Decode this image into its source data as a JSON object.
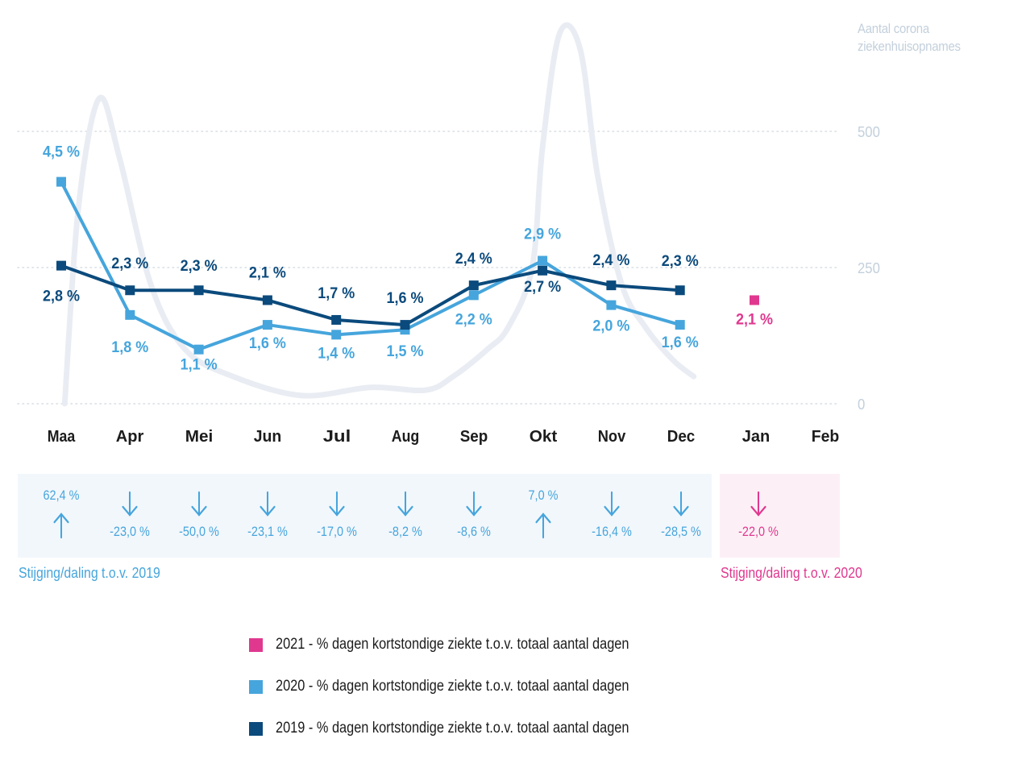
{
  "chart_data": {
    "type": "line",
    "title": "",
    "categories": [
      "Maa",
      "Apr",
      "Mei",
      "Jun",
      "Jul",
      "Aug",
      "Sep",
      "Okt",
      "Nov",
      "Dec",
      "Jan",
      "Feb"
    ],
    "series": [
      {
        "name": "2021 - % dagen kortstondige ziekte t.o.v. totaal aantal dagen",
        "color": "#e0388f",
        "values": [
          null,
          null,
          null,
          null,
          null,
          null,
          null,
          null,
          null,
          null,
          2.1,
          null
        ],
        "labels": [
          null,
          null,
          null,
          null,
          null,
          null,
          null,
          null,
          null,
          null,
          "2,1 %",
          null
        ]
      },
      {
        "name": "2020 - % dagen kortstondige ziekte t.o.v. totaal aantal dagen",
        "color": "#46a5dc",
        "values": [
          4.5,
          1.8,
          1.1,
          1.6,
          1.4,
          1.5,
          2.2,
          2.9,
          2.0,
          1.6,
          null,
          null
        ],
        "labels": [
          "4,5 %",
          "1,8 %",
          "1,1 %",
          "1,6 %",
          "1,4 %",
          "1,5 %",
          "2,2 %",
          "2,9 %",
          "2,0 %",
          "1,6 %",
          null,
          null
        ]
      },
      {
        "name": "2019 - % dagen kortstondige ziekte t.o.v. totaal aantal dagen",
        "color": "#0b4a7c",
        "values": [
          2.8,
          2.3,
          2.3,
          2.1,
          1.7,
          1.6,
          2.4,
          2.7,
          2.4,
          2.3,
          null,
          null
        ],
        "labels": [
          "2,8 %",
          "2,3 %",
          "2,3 %",
          "2,1 %",
          "1,7 %",
          "1,6 %",
          "2,4 %",
          "2,7 %",
          "2,4 %",
          "2,3 %",
          null,
          null
        ]
      }
    ],
    "background_series": {
      "name": "Aantal corona ziekenhuisopnames",
      "color": "#e9edf3",
      "x": [
        0.05,
        0.25,
        0.55,
        0.85,
        1.3,
        1.8,
        2.5,
        3.5,
        4.5,
        5.3,
        5.7,
        6.2,
        6.5,
        6.85,
        7.0,
        7.25,
        7.55,
        7.8,
        8.15,
        8.5,
        8.9,
        9.2
      ],
      "values": [
        0,
        360,
        560,
        450,
        220,
        100,
        50,
        15,
        30,
        25,
        50,
        100,
        140,
        250,
        470,
        680,
        650,
        420,
        220,
        140,
        80,
        50
      ]
    },
    "y_right": {
      "label": "Aantal corona ziekenhuisopnames",
      "ticks": [
        "0",
        "250",
        "500"
      ],
      "range": [
        0,
        500
      ]
    },
    "y_left_range_percent": [
      0,
      5.55
    ],
    "grid": true,
    "legend_position": "bottom"
  },
  "comparison_2019": {
    "caption": "Stijging/daling t.o.v. 2019",
    "items": [
      {
        "month": "Maa",
        "value": "62,4 %",
        "direction": "up"
      },
      {
        "month": "Apr",
        "value": "-23,0 %",
        "direction": "down"
      },
      {
        "month": "Mei",
        "value": "-50,0 %",
        "direction": "down"
      },
      {
        "month": "Jun",
        "value": "-23,1 %",
        "direction": "down"
      },
      {
        "month": "Jul",
        "value": "-17,0 %",
        "direction": "down"
      },
      {
        "month": "Aug",
        "value": "-8,2 %",
        "direction": "down"
      },
      {
        "month": "Sep",
        "value": "-8,6 %",
        "direction": "down"
      },
      {
        "month": "Okt",
        "value": "7,0 %",
        "direction": "up"
      },
      {
        "month": "Nov",
        "value": "-16,4 %",
        "direction": "down"
      },
      {
        "month": "Dec",
        "value": "-28,5 %",
        "direction": "down"
      }
    ]
  },
  "comparison_2020": {
    "caption": "Stijging/daling t.o.v. 2020",
    "items": [
      {
        "month": "Jan",
        "value": "-22,0 %",
        "direction": "down"
      }
    ]
  },
  "legend": [
    {
      "label": "2021 - % dagen kortstondige ziekte t.o.v. totaal aantal dagen",
      "color": "#e0388f"
    },
    {
      "label": "2020 - % dagen kortstondige ziekte t.o.v. totaal aantal dagen",
      "color": "#46a5dc"
    },
    {
      "label": "2019 - % dagen kortstondige ziekte t.o.v. totaal aantal dagen",
      "color": "#0b4a7c"
    }
  ],
  "colors": {
    "color_2021": "#e0388f",
    "color_2020": "#46a5dc",
    "color_2019": "#0b4a7c",
    "axis_text": "#c3d0dc",
    "month_text": "#1c1c1c",
    "panel_2019_bg": "#f2f7fc",
    "panel_2020_bg": "#fcf0f6"
  }
}
